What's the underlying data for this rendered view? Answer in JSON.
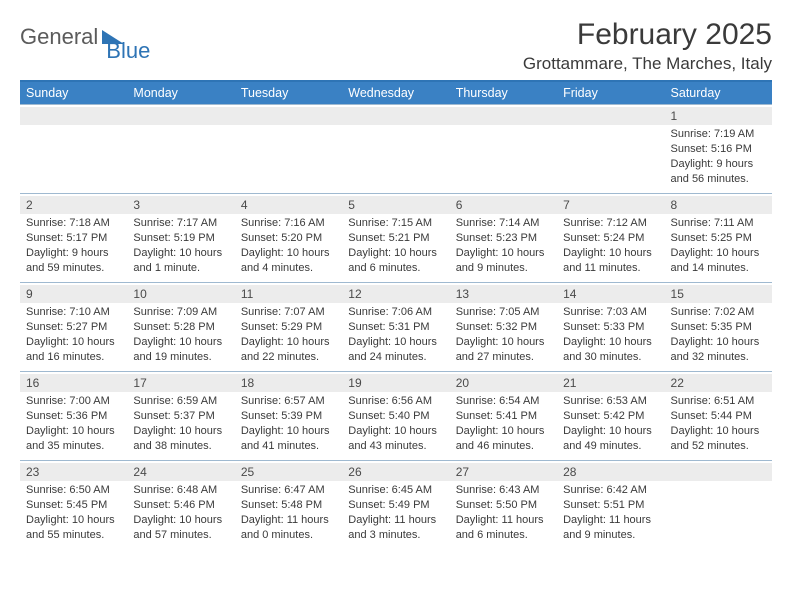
{
  "logo": {
    "word1": "General",
    "word2": "Blue"
  },
  "title": "February 2025",
  "location": "Grottammare, The Marches, Italy",
  "colors": {
    "header_bar": "#3a81c4",
    "header_border": "#2e74b5",
    "row_divider": "#9fb9d0",
    "daynum_bg": "#ececec",
    "text": "#3a3a3a",
    "logo_gray": "#5b5b5b",
    "logo_blue": "#2e74b5"
  },
  "weekdays": [
    "Sunday",
    "Monday",
    "Tuesday",
    "Wednesday",
    "Thursday",
    "Friday",
    "Saturday"
  ],
  "weeks": [
    [
      {
        "n": "",
        "sr": "",
        "ss": "",
        "dl": ""
      },
      {
        "n": "",
        "sr": "",
        "ss": "",
        "dl": ""
      },
      {
        "n": "",
        "sr": "",
        "ss": "",
        "dl": ""
      },
      {
        "n": "",
        "sr": "",
        "ss": "",
        "dl": ""
      },
      {
        "n": "",
        "sr": "",
        "ss": "",
        "dl": ""
      },
      {
        "n": "",
        "sr": "",
        "ss": "",
        "dl": ""
      },
      {
        "n": "1",
        "sr": "Sunrise: 7:19 AM",
        "ss": "Sunset: 5:16 PM",
        "dl": "Daylight: 9 hours and 56 minutes."
      }
    ],
    [
      {
        "n": "2",
        "sr": "Sunrise: 7:18 AM",
        "ss": "Sunset: 5:17 PM",
        "dl": "Daylight: 9 hours and 59 minutes."
      },
      {
        "n": "3",
        "sr": "Sunrise: 7:17 AM",
        "ss": "Sunset: 5:19 PM",
        "dl": "Daylight: 10 hours and 1 minute."
      },
      {
        "n": "4",
        "sr": "Sunrise: 7:16 AM",
        "ss": "Sunset: 5:20 PM",
        "dl": "Daylight: 10 hours and 4 minutes."
      },
      {
        "n": "5",
        "sr": "Sunrise: 7:15 AM",
        "ss": "Sunset: 5:21 PM",
        "dl": "Daylight: 10 hours and 6 minutes."
      },
      {
        "n": "6",
        "sr": "Sunrise: 7:14 AM",
        "ss": "Sunset: 5:23 PM",
        "dl": "Daylight: 10 hours and 9 minutes."
      },
      {
        "n": "7",
        "sr": "Sunrise: 7:12 AM",
        "ss": "Sunset: 5:24 PM",
        "dl": "Daylight: 10 hours and 11 minutes."
      },
      {
        "n": "8",
        "sr": "Sunrise: 7:11 AM",
        "ss": "Sunset: 5:25 PM",
        "dl": "Daylight: 10 hours and 14 minutes."
      }
    ],
    [
      {
        "n": "9",
        "sr": "Sunrise: 7:10 AM",
        "ss": "Sunset: 5:27 PM",
        "dl": "Daylight: 10 hours and 16 minutes."
      },
      {
        "n": "10",
        "sr": "Sunrise: 7:09 AM",
        "ss": "Sunset: 5:28 PM",
        "dl": "Daylight: 10 hours and 19 minutes."
      },
      {
        "n": "11",
        "sr": "Sunrise: 7:07 AM",
        "ss": "Sunset: 5:29 PM",
        "dl": "Daylight: 10 hours and 22 minutes."
      },
      {
        "n": "12",
        "sr": "Sunrise: 7:06 AM",
        "ss": "Sunset: 5:31 PM",
        "dl": "Daylight: 10 hours and 24 minutes."
      },
      {
        "n": "13",
        "sr": "Sunrise: 7:05 AM",
        "ss": "Sunset: 5:32 PM",
        "dl": "Daylight: 10 hours and 27 minutes."
      },
      {
        "n": "14",
        "sr": "Sunrise: 7:03 AM",
        "ss": "Sunset: 5:33 PM",
        "dl": "Daylight: 10 hours and 30 minutes."
      },
      {
        "n": "15",
        "sr": "Sunrise: 7:02 AM",
        "ss": "Sunset: 5:35 PM",
        "dl": "Daylight: 10 hours and 32 minutes."
      }
    ],
    [
      {
        "n": "16",
        "sr": "Sunrise: 7:00 AM",
        "ss": "Sunset: 5:36 PM",
        "dl": "Daylight: 10 hours and 35 minutes."
      },
      {
        "n": "17",
        "sr": "Sunrise: 6:59 AM",
        "ss": "Sunset: 5:37 PM",
        "dl": "Daylight: 10 hours and 38 minutes."
      },
      {
        "n": "18",
        "sr": "Sunrise: 6:57 AM",
        "ss": "Sunset: 5:39 PM",
        "dl": "Daylight: 10 hours and 41 minutes."
      },
      {
        "n": "19",
        "sr": "Sunrise: 6:56 AM",
        "ss": "Sunset: 5:40 PM",
        "dl": "Daylight: 10 hours and 43 minutes."
      },
      {
        "n": "20",
        "sr": "Sunrise: 6:54 AM",
        "ss": "Sunset: 5:41 PM",
        "dl": "Daylight: 10 hours and 46 minutes."
      },
      {
        "n": "21",
        "sr": "Sunrise: 6:53 AM",
        "ss": "Sunset: 5:42 PM",
        "dl": "Daylight: 10 hours and 49 minutes."
      },
      {
        "n": "22",
        "sr": "Sunrise: 6:51 AM",
        "ss": "Sunset: 5:44 PM",
        "dl": "Daylight: 10 hours and 52 minutes."
      }
    ],
    [
      {
        "n": "23",
        "sr": "Sunrise: 6:50 AM",
        "ss": "Sunset: 5:45 PM",
        "dl": "Daylight: 10 hours and 55 minutes."
      },
      {
        "n": "24",
        "sr": "Sunrise: 6:48 AM",
        "ss": "Sunset: 5:46 PM",
        "dl": "Daylight: 10 hours and 57 minutes."
      },
      {
        "n": "25",
        "sr": "Sunrise: 6:47 AM",
        "ss": "Sunset: 5:48 PM",
        "dl": "Daylight: 11 hours and 0 minutes."
      },
      {
        "n": "26",
        "sr": "Sunrise: 6:45 AM",
        "ss": "Sunset: 5:49 PM",
        "dl": "Daylight: 11 hours and 3 minutes."
      },
      {
        "n": "27",
        "sr": "Sunrise: 6:43 AM",
        "ss": "Sunset: 5:50 PM",
        "dl": "Daylight: 11 hours and 6 minutes."
      },
      {
        "n": "28",
        "sr": "Sunrise: 6:42 AM",
        "ss": "Sunset: 5:51 PM",
        "dl": "Daylight: 11 hours and 9 minutes."
      },
      {
        "n": "",
        "sr": "",
        "ss": "",
        "dl": ""
      }
    ]
  ]
}
